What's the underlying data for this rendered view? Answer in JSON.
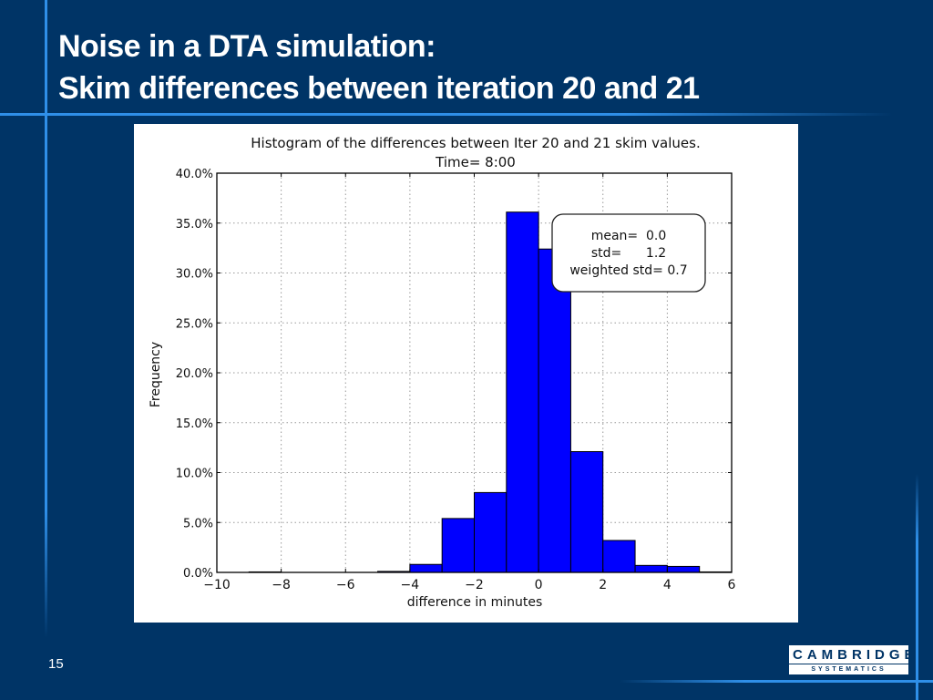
{
  "slide": {
    "title_line1": "Noise in a DTA simulation:",
    "title_line2": "Skim differences between iteration 20 and 21",
    "page_number": "15",
    "logo": {
      "main": "CAMBRIDGE",
      "sub": "SYSTEMATICS"
    },
    "colors": {
      "background": "#003466",
      "accent_line": "#2f8fe8"
    }
  },
  "chart_data": {
    "type": "bar",
    "title": "Histogram of the differences between Iter 20 and 21 skim values.",
    "subtitle": "Time= 8:00",
    "xlabel": "difference in minutes",
    "ylabel": "Frequency",
    "xlim": [
      -10,
      6
    ],
    "ylim": [
      0,
      40
    ],
    "xticks": [
      -10,
      -8,
      -6,
      -4,
      -2,
      0,
      2,
      4,
      6
    ],
    "xtick_labels": [
      "−10",
      "−8",
      "−6",
      "−4",
      "−2",
      "0",
      "2",
      "4",
      "6"
    ],
    "yticks": [
      0,
      5,
      10,
      15,
      20,
      25,
      30,
      35,
      40
    ],
    "ytick_labels": [
      "0.0%",
      "5.0%",
      "10.0%",
      "15.0%",
      "20.0%",
      "25.0%",
      "30.0%",
      "35.0%",
      "40.0%"
    ],
    "grid": true,
    "bar_color": "#0000ff",
    "bins": [
      {
        "from": -9,
        "to": -8,
        "value": 0.05
      },
      {
        "from": -8,
        "to": -7,
        "value": 0.0
      },
      {
        "from": -7,
        "to": -6,
        "value": 0.0
      },
      {
        "from": -6,
        "to": -5,
        "value": 0.0
      },
      {
        "from": -5,
        "to": -4,
        "value": 0.1
      },
      {
        "from": -4,
        "to": -3,
        "value": 0.8
      },
      {
        "from": -3,
        "to": -2,
        "value": 5.4
      },
      {
        "from": -2,
        "to": -1,
        "value": 8.0
      },
      {
        "from": -1,
        "to": 0,
        "value": 36.1
      },
      {
        "from": 0,
        "to": 1,
        "value": 32.4
      },
      {
        "from": 1,
        "to": 2,
        "value": 12.1
      },
      {
        "from": 2,
        "to": 3,
        "value": 3.2
      },
      {
        "from": 3,
        "to": 4,
        "value": 0.7
      },
      {
        "from": 4,
        "to": 5,
        "value": 0.6
      },
      {
        "from": 5,
        "to": 6,
        "value": 0.05
      }
    ],
    "annotation": {
      "lines": [
        "mean=  0.0",
        "std=      1.2",
        "weighted std= 0.7"
      ],
      "placement": "top-right"
    }
  }
}
